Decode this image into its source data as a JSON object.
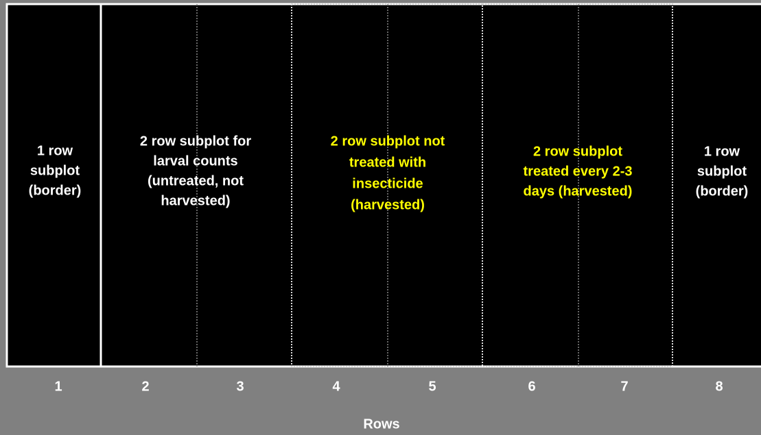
{
  "subplots": [
    {
      "lines": [
        "1 row",
        "subplot",
        "(border)"
      ]
    },
    {
      "lines": [
        "2 row subplot for",
        "larval counts",
        "(untreated, not",
        "harvested)"
      ]
    },
    {
      "lines": [
        "2 row subplot not",
        "treated with",
        "insecticide",
        "(harvested)"
      ]
    },
    {
      "lines": [
        "2 row subplot",
        "treated every 2-3",
        "days (harvested)"
      ]
    },
    {
      "lines": [
        "1 row",
        "subplot",
        "(border)"
      ]
    }
  ],
  "rows": [
    "1",
    "2",
    "3",
    "4",
    "5",
    "6",
    "7",
    "8"
  ],
  "axis_label": "Rows"
}
